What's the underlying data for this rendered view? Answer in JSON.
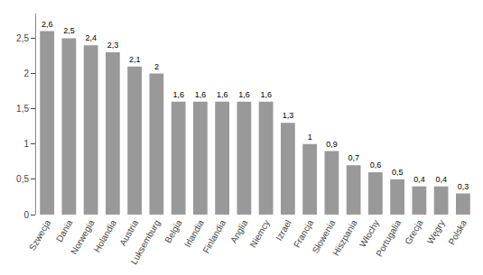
{
  "chart_data": {
    "type": "bar",
    "categories": [
      "Szwecja",
      "Dania",
      "Norwegia",
      "Holandia",
      "Austria",
      "Luksemburg",
      "Belgia",
      "Irlandia",
      "Finlandia",
      "Anglia",
      "Niemcy",
      "Izrael",
      "Francja",
      "Słowenia",
      "Hiszpania",
      "Włochy",
      "Portugalia",
      "Grecja",
      "Węgry",
      "Polska"
    ],
    "values": [
      2.6,
      2.5,
      2.4,
      2.3,
      2.1,
      2.0,
      1.6,
      1.6,
      1.6,
      1.6,
      1.6,
      1.3,
      1.0,
      0.9,
      0.7,
      0.6,
      0.5,
      0.4,
      0.4,
      0.3
    ],
    "value_labels": [
      "2,6",
      "2,5",
      "2,4",
      "2,3",
      "2,1",
      "2",
      "1,6",
      "1,6",
      "1,6",
      "1,6",
      "1,6",
      "1,3",
      "1",
      "0,9",
      "0,7",
      "0,6",
      "0,5",
      "0,4",
      "0,4",
      "0,3"
    ],
    "data_labels": true,
    "color": "#999999",
    "ylim": [
      0,
      2.85
    ],
    "yticks": [
      0,
      {
        "value": 0.5,
        "label": "0,5"
      },
      1,
      {
        "value": 1.5,
        "label": "1,5"
      },
      2,
      {
        "value": 2.5,
        "label": "2,5"
      }
    ],
    "grid": false
  }
}
